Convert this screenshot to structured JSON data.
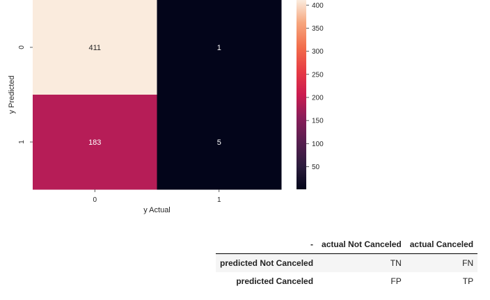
{
  "chart_data": {
    "type": "heatmap",
    "title": "",
    "xlabel": "y Actual",
    "ylabel": "y Predicted",
    "x_categories": [
      "0",
      "1"
    ],
    "y_categories": [
      "0",
      "1"
    ],
    "values": [
      [
        411,
        1
      ],
      [
        183,
        5
      ]
    ],
    "colorbar": {
      "ticks": [
        50,
        100,
        150,
        200,
        250,
        300,
        350,
        400
      ],
      "range": [
        1,
        411
      ],
      "colors": {
        "low": "#03051a",
        "mid": "#cb1b4f",
        "high": "#faebdd"
      }
    },
    "cell_colors": [
      [
        "#faebdd",
        "#03051a"
      ],
      [
        "#b61d57",
        "#03051a"
      ]
    ]
  },
  "table": {
    "corner": "-",
    "columns": [
      "actual Not Canceled",
      "actual Canceled"
    ],
    "rows": [
      {
        "label": "predicted Not Canceled",
        "cells": [
          "TN",
          "FN"
        ]
      },
      {
        "label": "predicted Canceled",
        "cells": [
          "FP",
          "TP"
        ]
      }
    ]
  }
}
